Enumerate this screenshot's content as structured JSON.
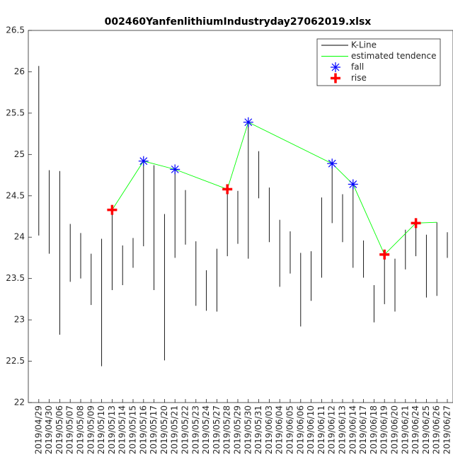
{
  "chart_data": {
    "type": "stock",
    "title": "002460YanfenlithiumIndustryday27062019.xlsx",
    "categories": [
      "2019/04/29",
      "2019/04/30",
      "2019/05/06",
      "2019/05/07",
      "2019/05/08",
      "2019/05/09",
      "2019/05/10",
      "2019/05/13",
      "2019/05/14",
      "2019/05/15",
      "2019/05/16",
      "2019/05/17",
      "2019/05/20",
      "2019/05/21",
      "2019/05/22",
      "2019/05/23",
      "2019/05/24",
      "2019/05/27",
      "2019/05/28",
      "2019/05/29",
      "2019/05/30",
      "2019/05/31",
      "2019/06/03",
      "2019/06/04",
      "2019/06/05",
      "2019/06/06",
      "2019/06/10",
      "2019/06/11",
      "2019/06/12",
      "2019/06/13",
      "2019/06/14",
      "2019/06/17",
      "2019/06/18",
      "2019/06/19",
      "2019/06/20",
      "2019/06/21",
      "2019/06/24",
      "2019/06/25",
      "2019/06/26",
      "2019/06/27"
    ],
    "series": [
      {
        "name": "K-Line",
        "color": "#000000",
        "high": [
          26.07,
          24.81,
          24.8,
          24.16,
          24.05,
          23.8,
          23.98,
          24.35,
          23.9,
          23.99,
          24.93,
          24.87,
          24.28,
          24.82,
          24.57,
          23.95,
          23.6,
          23.86,
          24.63,
          24.56,
          25.41,
          25.04,
          24.6,
          24.21,
          24.07,
          23.81,
          23.83,
          24.48,
          24.91,
          24.52,
          24.66,
          23.96,
          23.42,
          23.83,
          23.74,
          24.09,
          24.19,
          24.03,
          24.18,
          24.06
        ],
        "low": [
          24.02,
          23.8,
          22.82,
          23.46,
          23.5,
          23.18,
          22.44,
          23.36,
          23.42,
          23.63,
          23.89,
          23.36,
          22.51,
          23.75,
          23.91,
          23.17,
          23.11,
          23.1,
          23.77,
          23.92,
          23.74,
          24.47,
          23.94,
          23.4,
          23.56,
          22.92,
          23.23,
          23.51,
          24.17,
          23.94,
          23.63,
          23.51,
          22.97,
          23.19,
          23.1,
          23.61,
          23.77,
          23.27,
          23.29,
          23.75
        ]
      },
      {
        "name": "estimated tendence",
        "color": "#00ff00",
        "x": [
          7,
          10,
          13,
          18,
          20,
          28,
          30,
          33,
          36,
          38
        ],
        "values": [
          24.33,
          24.92,
          24.82,
          24.58,
          25.39,
          24.89,
          24.64,
          23.79,
          24.17,
          24.18
        ]
      },
      {
        "name": "fall",
        "color": "#0000ff",
        "marker": "asterisk",
        "x": [
          10,
          13,
          20,
          28,
          30
        ],
        "values": [
          24.92,
          24.82,
          25.39,
          24.89,
          24.64
        ]
      },
      {
        "name": "rise",
        "color": "#ff0000",
        "marker": "plus",
        "x": [
          7,
          18,
          33,
          36
        ],
        "values": [
          24.33,
          24.58,
          23.79,
          24.17
        ]
      }
    ],
    "ylim": [
      22,
      26.5
    ],
    "yticks": [
      22,
      22.5,
      23,
      23.5,
      24,
      24.5,
      25,
      25.5,
      26,
      26.5
    ],
    "grid": false,
    "legend": "northeast"
  }
}
